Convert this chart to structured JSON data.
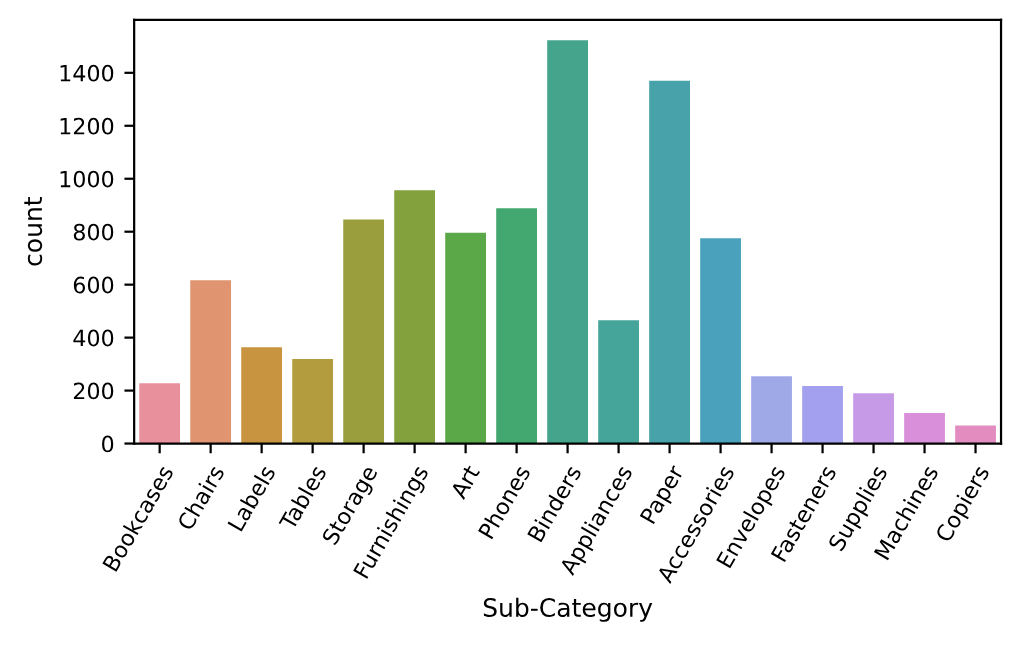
{
  "chart_data": {
    "type": "bar",
    "xlabel": "Sub-Category",
    "ylabel": "count",
    "categories": [
      "Bookcases",
      "Chairs",
      "Labels",
      "Tables",
      "Storage",
      "Furnishings",
      "Art",
      "Phones",
      "Binders",
      "Appliances",
      "Paper",
      "Accessories",
      "Envelopes",
      "Fasteners",
      "Supplies",
      "Machines",
      "Copiers"
    ],
    "values": [
      228,
      617,
      364,
      319,
      846,
      957,
      796,
      889,
      1523,
      466,
      1370,
      775,
      254,
      217,
      190,
      115,
      68
    ],
    "colors": [
      "#e8919c",
      "#e09470",
      "#c8943f",
      "#b39c3e",
      "#9b9e3d",
      "#83a23d",
      "#5aa847",
      "#42a86f",
      "#44a58c",
      "#46a59a",
      "#47a2a9",
      "#49a1bb",
      "#a0a9e8",
      "#a3a1ef",
      "#c79ae8",
      "#d98fd9",
      "#e38cc0"
    ],
    "ylim": [
      0,
      1600
    ],
    "yticks": [
      0,
      200,
      400,
      600,
      800,
      1000,
      1200,
      1400
    ],
    "grid": false
  }
}
